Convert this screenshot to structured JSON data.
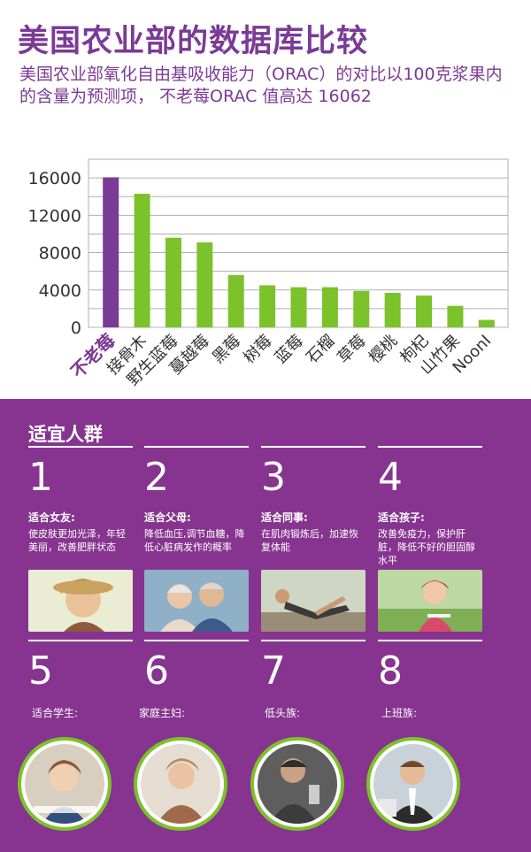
{
  "header": {
    "title": "美国农业部的数据库比较",
    "subtitle": "美国农业部氧化自由基吸收能力（ORAC）的对比以100克浆果内的含量为预测项， 不老莓ORAC 值高达 16062"
  },
  "chart_data": {
    "type": "bar",
    "categories": [
      "不老莓",
      "接骨木",
      "野生蓝莓",
      "蔓越莓",
      "黑莓",
      "树莓",
      "蓝莓",
      "石榴",
      "草莓",
      "樱桃",
      "枸杞",
      "山竹果",
      "NoonI"
    ],
    "values": [
      16062,
      14300,
      9600,
      9100,
      5600,
      4500,
      4300,
      4300,
      3900,
      3700,
      3400,
      2300,
      800
    ],
    "ylim": [
      0,
      18000
    ],
    "yticks": [
      0,
      4000,
      8000,
      12000,
      16000
    ],
    "grid": true,
    "highlight_index": 0,
    "colors": {
      "highlight": "#7b3a96",
      "bar": "#7cc22a",
      "grid": "#b0b0b0",
      "axis_text": "#333333"
    }
  },
  "panel": {
    "title": "适宜人群",
    "cards": [
      {
        "num": "1",
        "title": "适合女友:",
        "desc": "使皮肤更加光泽，年轻美丽，改善肥胖状态"
      },
      {
        "num": "2",
        "title": "适合父母:",
        "desc": "降低血压,调节血糖，降低心脏病发作的概率"
      },
      {
        "num": "3",
        "title": "适合同事:",
        "desc": "在肌肉锻炼后，加速恢复体能"
      },
      {
        "num": "4",
        "title": "适合孩子:",
        "desc": "改善免疫力，保护肝脏，降低不好的胆固醇水平"
      }
    ],
    "cards2": [
      {
        "num": "5",
        "title": "适合学生:"
      },
      {
        "num": "6",
        "title": "家庭主妇:"
      },
      {
        "num": "7",
        "title": "低头族:"
      },
      {
        "num": "8",
        "title": "上班族:"
      }
    ]
  }
}
